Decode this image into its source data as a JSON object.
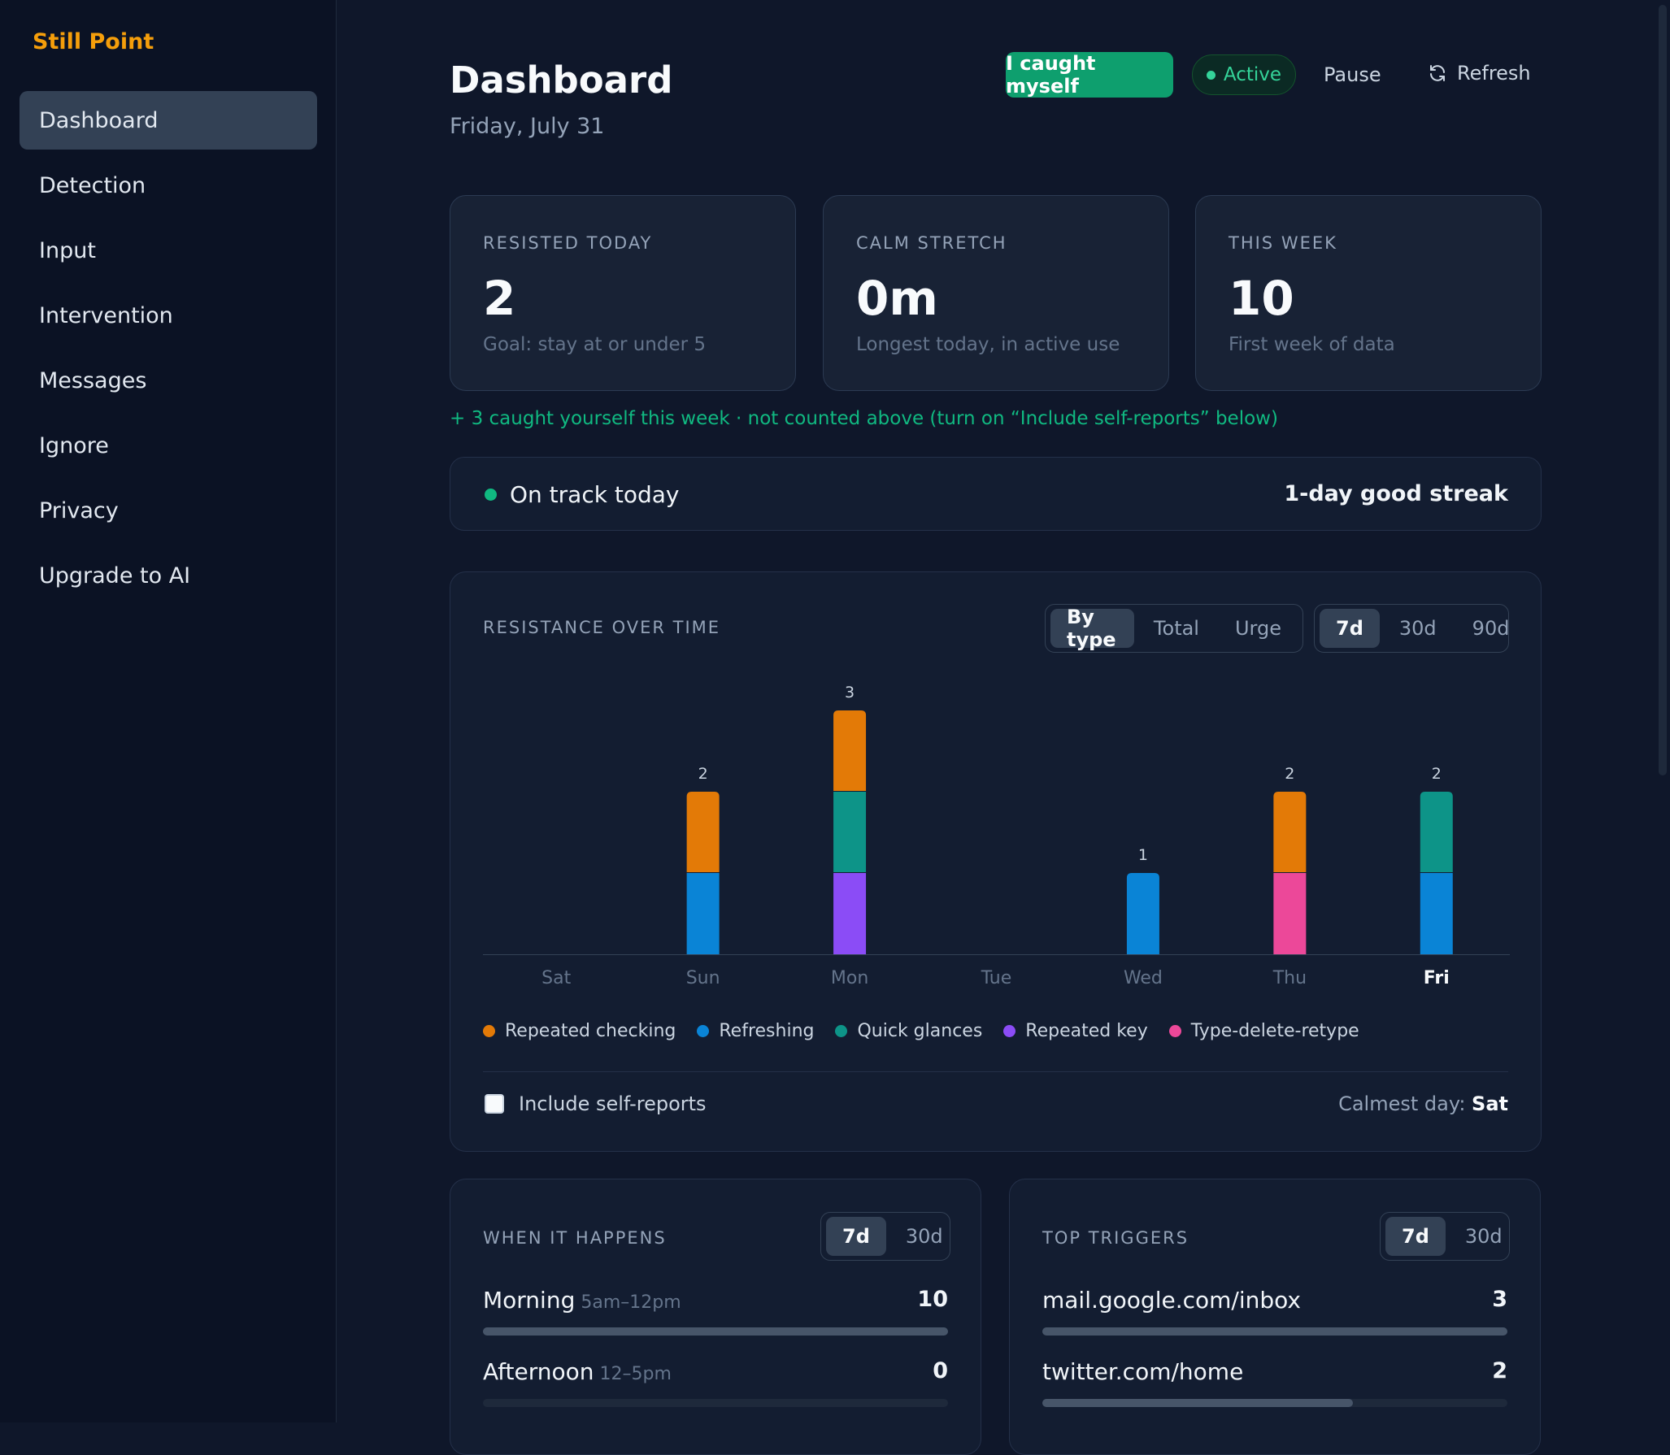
{
  "app": {
    "brand": "Still Point"
  },
  "sidebar": {
    "items": [
      {
        "label": "Dashboard",
        "active": true
      },
      {
        "label": "Detection"
      },
      {
        "label": "Input"
      },
      {
        "label": "Intervention"
      },
      {
        "label": "Messages"
      },
      {
        "label": "Ignore"
      },
      {
        "label": "Privacy"
      },
      {
        "label": "Upgrade to AI"
      }
    ]
  },
  "header": {
    "title": "Dashboard",
    "date": "Friday, July 31",
    "caught_button": "I caught myself",
    "status": "Active",
    "pause": "Pause",
    "refresh": "Refresh"
  },
  "stats": [
    {
      "label": "RESISTED TODAY",
      "value": "2",
      "sub": "Goal: stay at or under 5"
    },
    {
      "label": "CALM STRETCH",
      "value": "0m",
      "sub": "Longest today, in active use"
    },
    {
      "label": "THIS WEEK",
      "value": "10",
      "sub": "First week of data"
    }
  ],
  "caught_note": "+ 3 caught yourself this week · not counted above (turn on “Include self-reports” below)",
  "track": {
    "label": "On track today",
    "streak": "1-day good streak"
  },
  "resistance": {
    "title": "RESISTANCE OVER TIME",
    "view_tabs": [
      "By type",
      "Total",
      "Urge"
    ],
    "range_tabs": [
      "7d",
      "30d",
      "90d"
    ],
    "include_label": "Include self-reports",
    "calmest_label": "Calmest day:",
    "calmest_value": "Sat"
  },
  "colors": {
    "Repeated checking": "#e37a07",
    "Refreshing": "#0a84d6",
    "Quick glances": "#0d9488",
    "Repeated key": "#8b4cf6",
    "Type-delete-retype": "#ec4899"
  },
  "chart_data": {
    "type": "bar",
    "stacked": true,
    "categories": [
      "Sat",
      "Sun",
      "Mon",
      "Tue",
      "Wed",
      "Thu",
      "Fri"
    ],
    "highlight_category": "Fri",
    "series": [
      {
        "name": "Repeated checking",
        "values": [
          0,
          1,
          1,
          0,
          0,
          1,
          0
        ]
      },
      {
        "name": "Refreshing",
        "values": [
          0,
          1,
          0,
          0,
          1,
          0,
          1
        ]
      },
      {
        "name": "Quick glances",
        "values": [
          0,
          0,
          1,
          0,
          0,
          0,
          1
        ]
      },
      {
        "name": "Repeated key",
        "values": [
          0,
          0,
          1,
          0,
          0,
          0,
          0
        ]
      },
      {
        "name": "Type-delete-retype",
        "values": [
          0,
          0,
          0,
          0,
          0,
          1,
          0
        ]
      }
    ],
    "totals": [
      0,
      2,
      3,
      0,
      1,
      2,
      2
    ],
    "stack_order": [
      "Type-delete-retype",
      "Repeated key",
      "Refreshing",
      "Quick glances",
      "Repeated checking"
    ]
  },
  "when": {
    "title": "WHEN IT HAPPENS",
    "range_tabs": [
      "7d",
      "30d"
    ],
    "rows": [
      {
        "label": "Morning",
        "hint": "5am–12pm",
        "count": "10",
        "fraction": 1.0
      },
      {
        "label": "Afternoon",
        "hint": "12–5pm",
        "count": "0",
        "fraction": 0.0
      }
    ]
  },
  "triggers": {
    "title": "TOP TRIGGERS",
    "range_tabs": [
      "7d",
      "30d"
    ],
    "rows": [
      {
        "label": "mail.google.com/inbox",
        "count": "3",
        "fraction": 1.0
      },
      {
        "label": "twitter.com/home",
        "count": "2",
        "fraction": 0.667
      }
    ]
  }
}
